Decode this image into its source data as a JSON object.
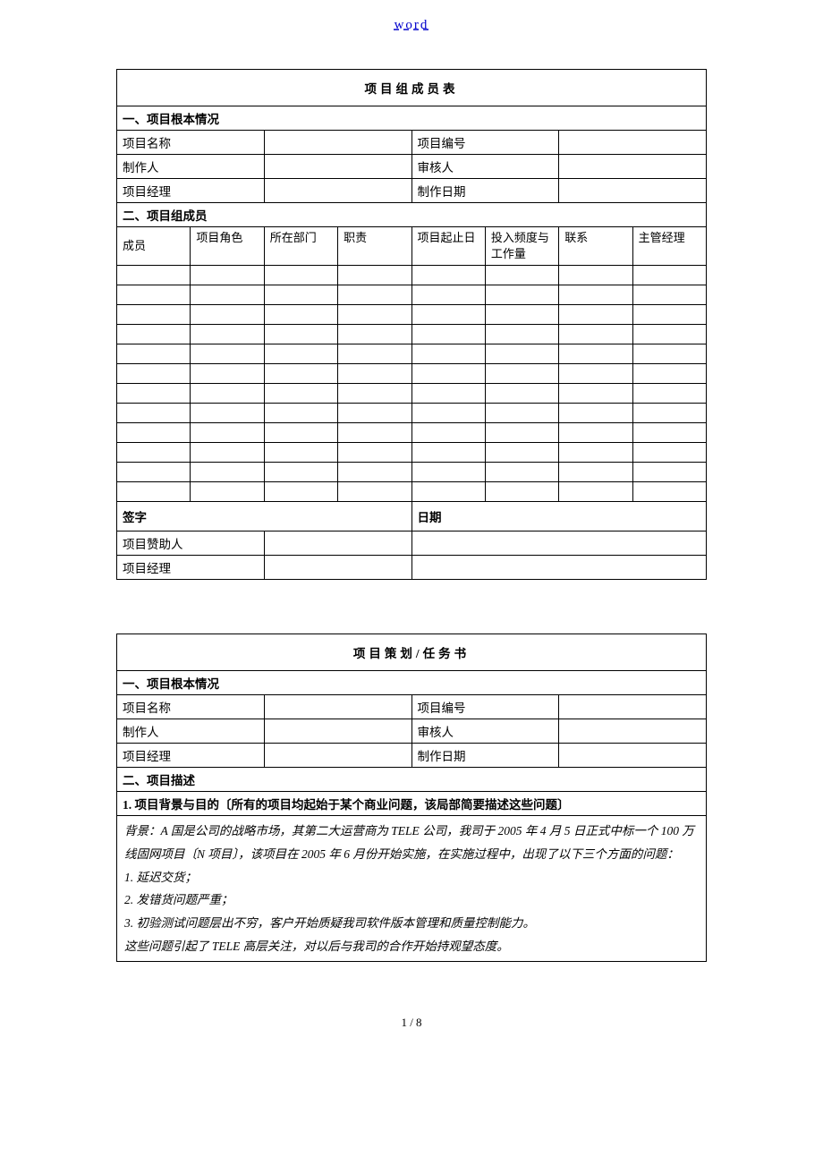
{
  "header": {
    "link_text": "word"
  },
  "table1": {
    "title": "项目组成员表",
    "section1": "一、项目根本情况",
    "rows_info": [
      {
        "l1": "项目名称",
        "l2": "项目编号"
      },
      {
        "l1": "制作人",
        "l2": "审核人"
      },
      {
        "l1": "项目经理",
        "l2": "制作日期"
      }
    ],
    "section2": "二、项目组成员",
    "member_headers": [
      "成员",
      "项目角色",
      "所在部门",
      "职责",
      "项目起止日",
      "投入频度与工作量",
      "联系",
      "主管经理"
    ],
    "signature_label": "签字",
    "date_label": "日期",
    "sig_rows": [
      "项目赞助人",
      "项目经理"
    ]
  },
  "table2": {
    "title": "项目策划/任务书",
    "section1": "一、项目根本情况",
    "rows_info": [
      {
        "l1": "项目名称",
        "l2": "项目编号"
      },
      {
        "l1": "制作人",
        "l2": "审核人"
      },
      {
        "l1": "项目经理",
        "l2": "制作日期"
      }
    ],
    "section2": "二、项目描述",
    "sub1": "1. 项目背景与目的〔所有的项目均起始于某个商业问题，该局部简要描述这些问题〕",
    "body_lines": [
      "背景：A 国是公司的战略市场，其第二大运营商为 TELE 公司，我司于 2005 年 4 月 5 日正式中标一个 100 万线固网项目〔N 项目〕，该项目在 2005 年 6 月份开始实施，在实施过程中，出现了以下三个方面的问题：",
      "1. 延迟交货；",
      "2. 发错货问题严重；",
      "3. 初验测试问题层出不穷，客户开始质疑我司软件版本管理和质量控制能力。",
      "这些问题引起了 TELE 高层关注，对以后与我司的合作开始持观望态度。"
    ]
  },
  "footer": {
    "page": "1 / 8"
  },
  "colors": {
    "link": "#0000cc",
    "border": "#000000",
    "text": "#000000",
    "bg": "#ffffff"
  }
}
